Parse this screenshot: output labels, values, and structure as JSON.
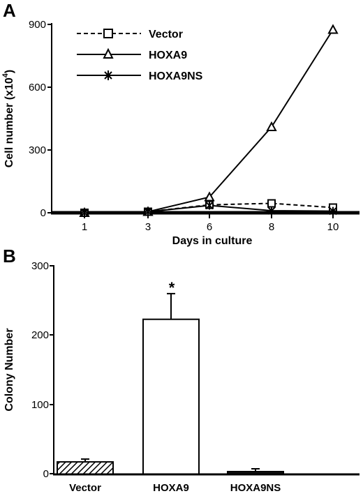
{
  "panels": [
    {
      "letter": "A",
      "chart_data": {
        "type": "line",
        "x": [
          1,
          3,
          6,
          8,
          10
        ],
        "categories": [
          "1",
          "3",
          "6",
          "8",
          "10"
        ],
        "xlabel": "Days in culture",
        "ylabel": "Cell number (x10",
        "ylabel_sup": "4",
        "ylabel_close": ")",
        "ylim": [
          0,
          900
        ],
        "yticks": [
          "0",
          "300",
          "600",
          "900"
        ],
        "legend_placement": "top-left",
        "series": [
          {
            "name": "Vector",
            "marker": "square",
            "dash": true,
            "values": [
              0,
              5,
              38,
              45,
              25
            ]
          },
          {
            "name": "HOXA9",
            "marker": "triangle",
            "dash": false,
            "values": [
              0,
              5,
              75,
              410,
              875
            ]
          },
          {
            "name": "HOXA9NS",
            "marker": "star",
            "dash": false,
            "values": [
              0,
              5,
              35,
              10,
              8
            ]
          }
        ]
      }
    },
    {
      "letter": "B",
      "chart_data": {
        "type": "bar",
        "categories": [
          "Vector",
          "HOXA9",
          "HOXA9NS"
        ],
        "values": [
          18,
          223,
          4
        ],
        "errors": [
          4,
          37,
          4
        ],
        "fills": [
          "hatch",
          "white",
          "black"
        ],
        "ylabel": "Colony Number",
        "ylim": [
          0,
          300
        ],
        "yticks": [
          "0",
          "100",
          "200",
          "300"
        ],
        "annotations": [
          {
            "category": "HOXA9",
            "text": "*"
          }
        ]
      }
    }
  ]
}
